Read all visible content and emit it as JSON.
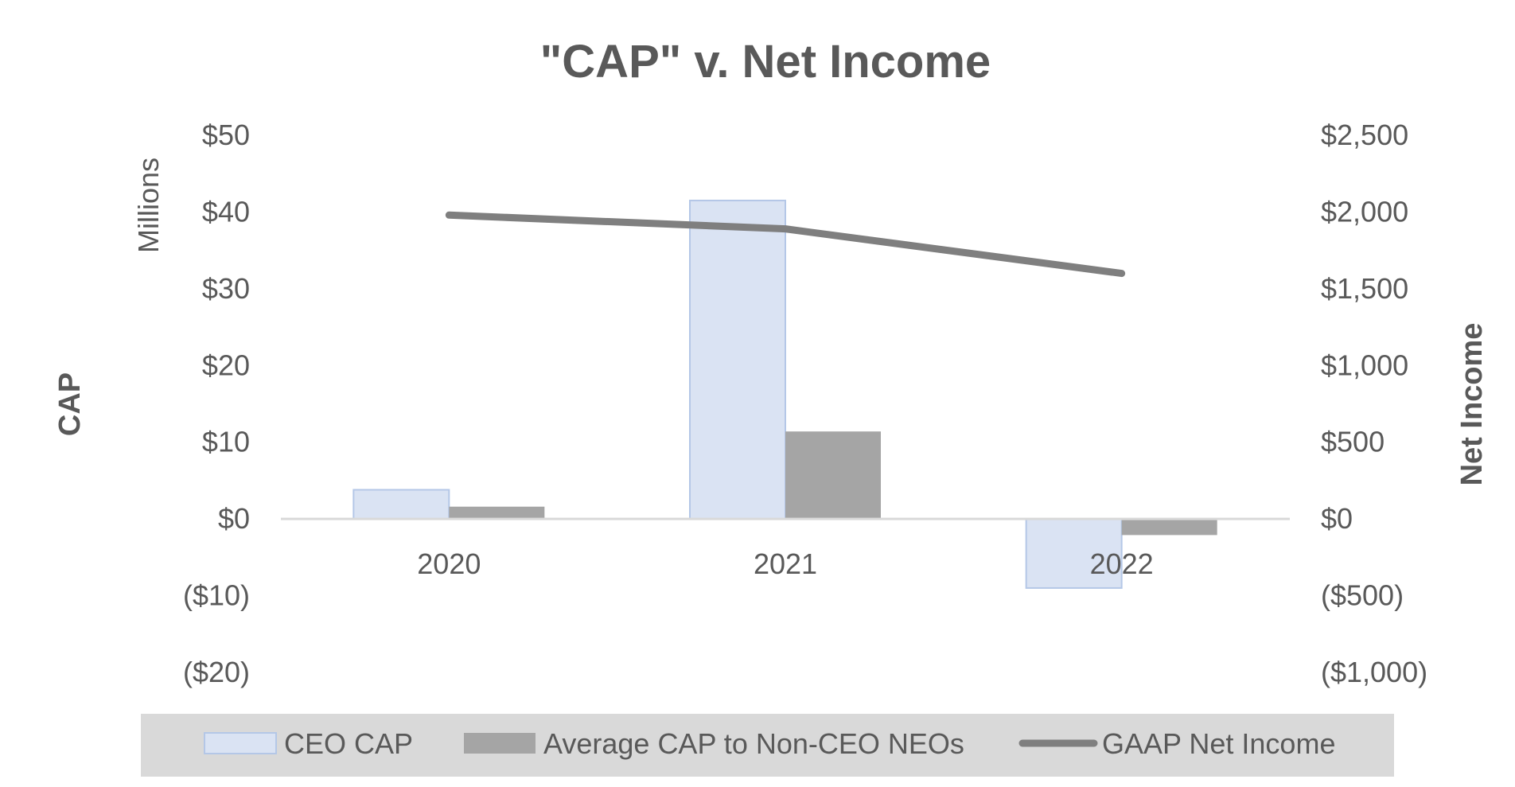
{
  "chart_data": {
    "type": "bar",
    "title": "\"CAP\" v. Net Income",
    "categories": [
      "2020",
      "2021",
      "2022"
    ],
    "y_left": {
      "label": "CAP",
      "units": "Millions",
      "ylim": [
        -20,
        50
      ],
      "ticks": [
        50,
        40,
        30,
        20,
        10,
        0,
        -10,
        -20
      ],
      "tick_labels": [
        "$50",
        "$40",
        "$30",
        "$20",
        "$10",
        "$0",
        "($10)",
        "($20)"
      ]
    },
    "y_right": {
      "label": "Net Income",
      "ylim": [
        -1000,
        2500
      ],
      "ticks": [
        2500,
        2000,
        1500,
        1000,
        500,
        0,
        -500,
        -1000
      ],
      "tick_labels": [
        "$2,500",
        "$2,000",
        "$1,500",
        "$1,000",
        "$500",
        "$0",
        "($500)",
        "($1,000)"
      ]
    },
    "series": [
      {
        "name": "CEO CAP",
        "type": "bar",
        "axis": "left",
        "values": [
          3.8,
          41.5,
          -9.0
        ],
        "color": "#dae3f3",
        "stroke": "#b4c7e7"
      },
      {
        "name": "Average CAP to Non-CEO NEOs",
        "type": "bar",
        "axis": "left",
        "values": [
          1.6,
          11.4,
          -2.1
        ],
        "color": "#a5a5a5"
      },
      {
        "name": "GAAP Net Income",
        "type": "line",
        "axis": "right",
        "values": [
          1980,
          1890,
          1600
        ],
        "color": "#7f7f7f"
      }
    ],
    "grid": false,
    "legend_position": "bottom"
  },
  "colors": {
    "text": "#595959",
    "baseline": "#d9d9d9",
    "legend_bg": "#d9d9d9"
  }
}
